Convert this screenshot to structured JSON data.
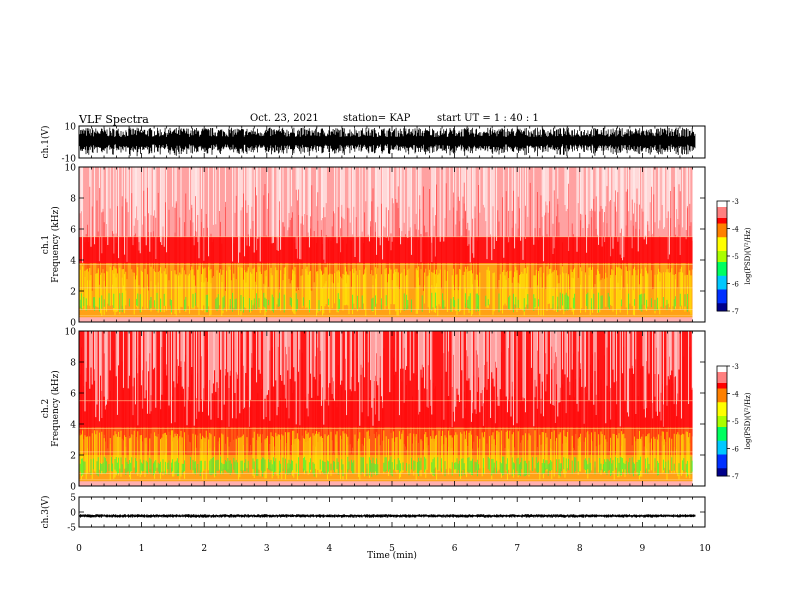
{
  "header": {
    "title": "VLF Spectra",
    "date": "Oct. 23, 2021",
    "station": "station= KAP",
    "start_ut": "start  UT =   1 : 40 : 1"
  },
  "colors": {
    "intensity_scale": [
      "#00008b",
      "#0030ff",
      "#00c8ff",
      "#00ff60",
      "#aaff00",
      "#ffff00",
      "#ff8000",
      "#ff0000",
      "#ffffff"
    ],
    "waveform": "#000000"
  },
  "chart_data": [
    {
      "type": "line",
      "panel": "ch1-waveform",
      "ylabel": "ch.1(V)",
      "ylim": [
        -10,
        10
      ],
      "yticks": [
        "10",
        "-10"
      ],
      "xlim": [
        0,
        10
      ],
      "description_values": {
        "envelope_min": -9,
        "envelope_max": 9
      }
    },
    {
      "type": "heatmap",
      "panel": "ch1-spectrogram",
      "ylabel": "ch.1\nFrequency (kHz)",
      "ylim": [
        0,
        10
      ],
      "yticks": [
        "0",
        "2",
        "4",
        "6",
        "8",
        "10"
      ],
      "xlim": [
        0,
        9.8
      ],
      "bands": [
        {
          "from": 0.3,
          "to": 3.8,
          "level": -4.3
        },
        {
          "from": 3.8,
          "to": 5.5,
          "level": -3.6
        },
        {
          "from": 5.5,
          "to": 10,
          "level": -3.2
        }
      ],
      "colorbar": {
        "label": "log(PSD)(V²/Hz)",
        "ticks": [
          "-3",
          "-4",
          "-5",
          "-6",
          "-7"
        ],
        "range": [
          -7,
          -3
        ]
      }
    },
    {
      "type": "heatmap",
      "panel": "ch2-spectrogram",
      "ylabel": "ch.2\nFrequency (kHz)",
      "ylim": [
        0,
        10
      ],
      "yticks": [
        "0",
        "2",
        "4",
        "6",
        "8",
        "10"
      ],
      "xlim": [
        0,
        9.8
      ],
      "bands": [
        {
          "from": 0.3,
          "to": 2.0,
          "level": -4.7
        },
        {
          "from": 2.0,
          "to": 3.8,
          "level": -4.1
        },
        {
          "from": 3.8,
          "to": 10,
          "level": -3.3
        }
      ],
      "colorbar": {
        "label": "log(PSD)(V²/Hz)",
        "ticks": [
          "-3",
          "-4",
          "-5",
          "-6",
          "-7"
        ],
        "range": [
          -7,
          -3
        ]
      }
    },
    {
      "type": "line",
      "panel": "ch3-waveform",
      "ylabel": "ch.3(V)",
      "ylim": [
        -5,
        5
      ],
      "yticks": [
        "5",
        "0",
        "-5"
      ],
      "xlim": [
        0,
        10
      ],
      "description_values": {
        "level": -1.3,
        "spread": 0.4
      }
    }
  ],
  "xaxis": {
    "label": "Time (min)",
    "ticks": [
      "0",
      "1",
      "2",
      "3",
      "4",
      "5",
      "6",
      "7",
      "8",
      "9",
      "10"
    ],
    "range": [
      0,
      10
    ]
  }
}
